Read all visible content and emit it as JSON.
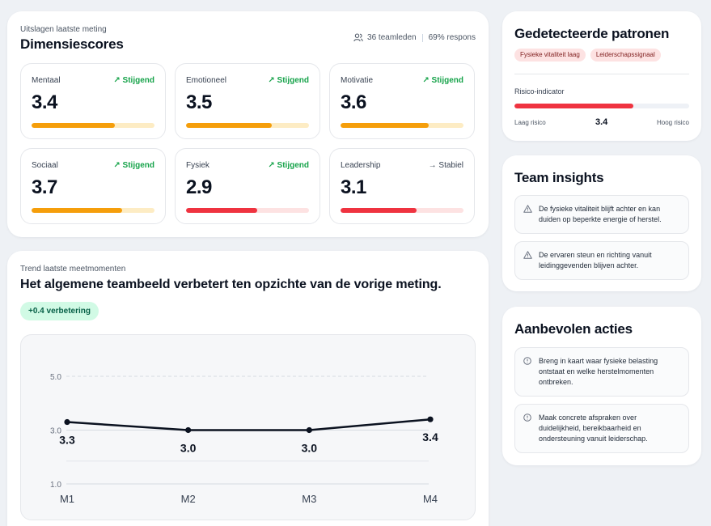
{
  "dimensions": {
    "eyebrow": "Uitslagen laatste meting",
    "title": "Dimensiescores",
    "team_members": "36 teamleden",
    "response": "69% respons",
    "tiles": [
      {
        "label": "Mentaal",
        "trend": "↗ Stijgend",
        "value": "3.4",
        "level": 0.68,
        "status": "warn"
      },
      {
        "label": "Emotioneel",
        "trend": "↗ Stijgend",
        "value": "3.5",
        "level": 0.7,
        "status": "warn"
      },
      {
        "label": "Motivatie",
        "trend": "↗ Stijgend",
        "value": "3.6",
        "level": 0.72,
        "status": "warn"
      },
      {
        "label": "Sociaal",
        "trend": "↗ Stijgend",
        "value": "3.7",
        "level": 0.74,
        "status": "warn"
      },
      {
        "label": "Fysiek",
        "trend": "↗ Stijgend",
        "value": "2.9",
        "level": 0.58,
        "status": "bad"
      },
      {
        "label": "Leadership",
        "trend": "→ Stabiel",
        "value": "3.1",
        "level": 0.62,
        "status": "bad"
      }
    ]
  },
  "trend": {
    "eyebrow": "Trend laatste meetmomenten",
    "title": "Het algemene teambeeld verbetert ten opzichte van de vorige meting.",
    "badge": "+0.4 verbetering"
  },
  "chart_data": {
    "type": "line",
    "categories": [
      "M1",
      "M2",
      "M3",
      "M4"
    ],
    "values": [
      3.3,
      3.0,
      3.0,
      3.4
    ],
    "data_labels": [
      "3.3",
      "3.0",
      "3.0",
      "3.4"
    ],
    "yticks": [
      "5.0",
      "3.0",
      "1.0"
    ],
    "ylim": [
      1.0,
      5.0
    ],
    "grid": true,
    "line_color": "#0b1220"
  },
  "patterns": {
    "title": "Gedetecteerde patronen",
    "chips": [
      "Fysieke vitaliteit laag",
      "Leiderschapssignaal"
    ],
    "risk_label": "Risico-indicator",
    "risk_low": "Laag risico",
    "risk_value": "3.4",
    "risk_high": "Hoog risico",
    "risk_level": 0.68
  },
  "insights": {
    "title": "Team insights",
    "items": [
      "De fysieke vitaliteit blijft achter en kan duiden op beperkte energie of herstel.",
      "De ervaren steun en richting vanuit leidinggevenden blijven achter."
    ]
  },
  "actions": {
    "title": "Aanbevolen acties",
    "items": [
      "Breng in kaart waar fysieke belasting ontstaat en welke herstelmomenten ontbreken.",
      "Maak concrete afspraken over duidelijkheid, bereikbaarheid en ondersteuning vanuit leiderschap."
    ]
  },
  "colors": {
    "accent_green": "#16a34a",
    "warn": "#f59e0b",
    "danger": "#ef3340"
  }
}
